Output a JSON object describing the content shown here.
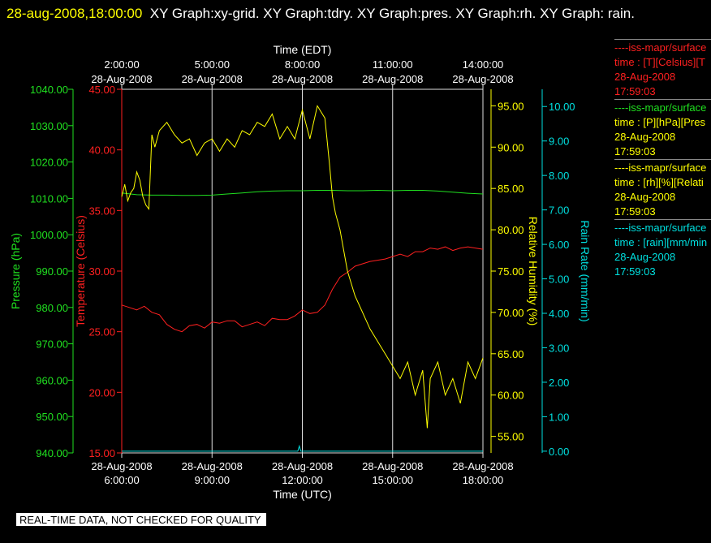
{
  "header": {
    "timestamp": "28-aug-2008,18:00:00",
    "title": "XY Graph:xy-grid.  XY Graph:tdry.  XY Graph:pres.  XY Graph:rh.  XY Graph: rain."
  },
  "notice": "REAL-TIME DATA, NOT CHECKED FOR QUALITY",
  "legend": [
    {
      "line": "----iss-mapr/surface",
      "sub": "time : [T][Celsius][T",
      "date": "28-Aug-2008",
      "time": "17:59:03",
      "color": "#ff2020",
      "sub_color": "#ff2020"
    },
    {
      "line": "----iss-mapr/surface",
      "sub": "time : [P][hPa][Pres",
      "date": "28-Aug-2008",
      "time": "17:59:03",
      "color": "#20e020",
      "sub_color": "#ffff00"
    },
    {
      "line": "----iss-mapr/surface",
      "sub": "time : [rh][%][Relati",
      "date": "28-Aug-2008",
      "time": "17:59:03",
      "color": "#ffff00",
      "sub_color": "#ffff00"
    },
    {
      "line": "----iss-mapr/surface",
      "sub": "time : [rain][mm/min",
      "date": "28-Aug-2008",
      "time": "17:59:03",
      "color": "#00e0e0",
      "sub_color": "#ffff00"
    }
  ],
  "chart_data": {
    "type": "line",
    "x_top": {
      "label": "Time (EDT)",
      "ticks": [
        {
          "time": "2:00:00",
          "date": "28-Aug-2008"
        },
        {
          "time": "5:00:00",
          "date": "28-Aug-2008"
        },
        {
          "time": "8:00:00",
          "date": "28-Aug-2008"
        },
        {
          "time": "11:00:00",
          "date": "28-Aug-2008"
        },
        {
          "time": "14:00:00",
          "date": "28-Aug-2008"
        }
      ]
    },
    "x_bottom": {
      "label": "Time (UTC)",
      "ticks": [
        {
          "date": "28-Aug-2008",
          "time": "6:00:00"
        },
        {
          "date": "28-Aug-2008",
          "time": "9:00:00"
        },
        {
          "date": "28-Aug-2008",
          "time": "12:00:00"
        },
        {
          "date": "28-Aug-2008",
          "time": "15:00:00"
        },
        {
          "date": "28-Aug-2008",
          "time": "18:00:00"
        }
      ],
      "range_hours_utc": [
        6,
        18
      ]
    },
    "axes": {
      "pressure": {
        "label": "Pressure (hPa)",
        "min": 940,
        "max": 1040,
        "ticks": [
          "1040.00",
          "1030.00",
          "1020.00",
          "1010.00",
          "1000.00",
          "990.00",
          "980.00",
          "970.00",
          "960.00",
          "950.00",
          "940.00"
        ],
        "color": "#20e020"
      },
      "temperature": {
        "label": "Temperature (Celsius)",
        "min": 15,
        "max": 45,
        "ticks": [
          "45.00",
          "40.00",
          "35.00",
          "30.00",
          "25.00",
          "20.00",
          "15.00"
        ],
        "color": "#ff2020"
      },
      "humidity": {
        "label": "Relative Humidity (%)",
        "min": 53,
        "max": 97,
        "ticks": [
          "95.00",
          "90.00",
          "85.00",
          "80.00",
          "75.00",
          "70.00",
          "65.00",
          "60.00",
          "55.00"
        ],
        "color": "#ffff00"
      },
      "rain": {
        "label": "Rain Rate (mm/min)",
        "min": -0.05,
        "max": 10.5,
        "ticks": [
          "10.00",
          "9.00",
          "8.00",
          "7.00",
          "6.00",
          "5.00",
          "4.00",
          "3.00",
          "2.00",
          "1.00",
          "0.00"
        ],
        "color": "#00e0e0"
      }
    },
    "series": [
      {
        "name": "tdry",
        "axis": "temperature",
        "color": "#ff2020",
        "x": [
          6.0,
          6.25,
          6.5,
          6.75,
          7.0,
          7.25,
          7.5,
          7.75,
          8.0,
          8.25,
          8.5,
          8.75,
          9.0,
          9.25,
          9.5,
          9.75,
          10.0,
          10.25,
          10.5,
          10.75,
          11.0,
          11.25,
          11.5,
          11.75,
          12.0,
          12.25,
          12.5,
          12.75,
          13.0,
          13.25,
          13.5,
          13.75,
          14.0,
          14.25,
          14.5,
          14.75,
          15.0,
          15.25,
          15.5,
          15.75,
          16.0,
          16.25,
          16.5,
          16.75,
          17.0,
          17.25,
          17.5,
          17.75,
          18.0
        ],
        "y": [
          27.2,
          27.0,
          26.8,
          27.1,
          26.6,
          26.4,
          25.6,
          25.2,
          25.0,
          25.5,
          25.6,
          25.3,
          25.8,
          25.7,
          25.9,
          25.9,
          25.4,
          25.6,
          25.8,
          25.5,
          26.1,
          26.0,
          26.0,
          26.3,
          26.8,
          26.5,
          26.6,
          27.2,
          28.5,
          29.5,
          29.9,
          30.4,
          30.6,
          30.8,
          30.9,
          31.0,
          31.2,
          31.4,
          31.2,
          31.6,
          31.6,
          31.9,
          31.8,
          32.0,
          31.7,
          31.9,
          32.0,
          31.9,
          31.8
        ]
      },
      {
        "name": "pres",
        "axis": "pressure",
        "color": "#20e020",
        "x": [
          6.0,
          6.5,
          7.0,
          7.5,
          8.0,
          8.5,
          9.0,
          9.5,
          10.0,
          10.5,
          11.0,
          11.5,
          12.0,
          12.5,
          13.0,
          13.5,
          14.0,
          14.5,
          15.0,
          15.5,
          16.0,
          16.5,
          17.0,
          17.5,
          18.0
        ],
        "y": [
          1011.5,
          1011.0,
          1010.9,
          1010.9,
          1010.8,
          1010.8,
          1010.9,
          1011.2,
          1011.5,
          1011.8,
          1012.0,
          1012.1,
          1012.1,
          1012.2,
          1012.2,
          1012.1,
          1012.1,
          1012.2,
          1012.1,
          1012.2,
          1012.2,
          1012.0,
          1011.7,
          1011.4,
          1011.2
        ]
      },
      {
        "name": "rh",
        "axis": "humidity",
        "color": "#ffff00",
        "x": [
          6.0,
          6.1,
          6.2,
          6.3,
          6.4,
          6.5,
          6.6,
          6.7,
          6.8,
          6.9,
          7.0,
          7.1,
          7.25,
          7.5,
          7.75,
          8.0,
          8.25,
          8.5,
          8.75,
          9.0,
          9.25,
          9.5,
          9.75,
          10.0,
          10.25,
          10.5,
          10.75,
          11.0,
          11.25,
          11.5,
          11.75,
          12.0,
          12.25,
          12.5,
          12.75,
          12.9,
          13.0,
          13.1,
          13.25,
          13.4,
          13.5,
          13.75,
          14.0,
          14.25,
          14.5,
          14.75,
          15.0,
          15.25,
          15.5,
          15.75,
          16.0,
          16.15,
          16.25,
          16.5,
          16.75,
          17.0,
          17.25,
          17.5,
          17.75,
          18.0
        ],
        "y": [
          84.0,
          85.5,
          83.5,
          84.5,
          85.0,
          87.0,
          86.0,
          84.0,
          83.0,
          82.5,
          91.5,
          90.0,
          92.0,
          93.0,
          91.5,
          90.5,
          91.0,
          89.0,
          90.5,
          91.0,
          89.5,
          91.0,
          90.0,
          92.0,
          91.5,
          93.0,
          92.5,
          94.0,
          91.0,
          92.5,
          91.0,
          94.5,
          91.0,
          95.0,
          93.5,
          88.0,
          84.0,
          82.0,
          80.0,
          77.0,
          75.0,
          72.0,
          70.0,
          68.0,
          66.5,
          65.0,
          63.5,
          62.0,
          64.0,
          60.0,
          63.0,
          56.0,
          62.0,
          64.0,
          60.0,
          62.0,
          59.0,
          64.0,
          62.0,
          64.5
        ]
      },
      {
        "name": "rain",
        "axis": "rain",
        "color": "#00e0e0",
        "x": [
          6.0,
          11.85,
          11.9,
          11.95,
          18.0
        ],
        "y": [
          0.0,
          0.0,
          0.15,
          0.0,
          0.0
        ]
      }
    ]
  }
}
